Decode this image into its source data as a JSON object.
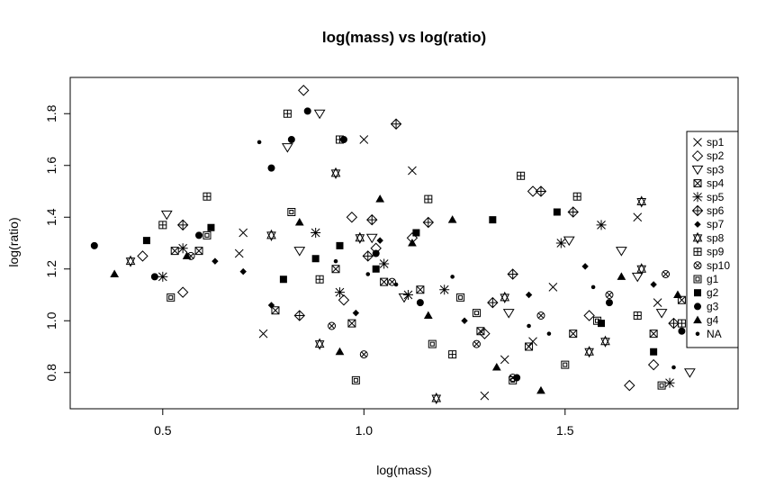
{
  "chart_data": {
    "type": "scatter",
    "title": "log(mass) vs log(ratio)",
    "xlabel": "log(mass)",
    "ylabel": "log(ratio)",
    "xlim": [
      0.27,
      1.93
    ],
    "ylim": [
      0.66,
      1.94
    ],
    "x_ticks": [
      "0.5",
      "1.0",
      "1.5"
    ],
    "y_ticks": [
      "0.8",
      "1.0",
      "1.2",
      "1.4",
      "1.6",
      "1.8"
    ],
    "grid": false,
    "legend_position": "right",
    "series": [
      {
        "name": "sp1",
        "symbol": "x",
        "points": [
          [
            0.7,
            1.34
          ],
          [
            0.69,
            1.26
          ],
          [
            0.75,
            0.95
          ],
          [
            1.0,
            1.7
          ],
          [
            1.12,
            1.58
          ],
          [
            1.3,
            0.71
          ],
          [
            1.47,
            1.13
          ],
          [
            1.68,
            1.4
          ],
          [
            1.73,
            1.07
          ],
          [
            1.83,
            1.02
          ],
          [
            1.35,
            0.85
          ],
          [
            1.42,
            0.92
          ]
        ]
      },
      {
        "name": "sp2",
        "symbol": "diamond",
        "points": [
          [
            0.45,
            1.25
          ],
          [
            0.55,
            1.11
          ],
          [
            0.85,
            1.89
          ],
          [
            0.97,
            1.4
          ],
          [
            1.03,
            1.28
          ],
          [
            1.12,
            1.32
          ],
          [
            1.42,
            1.5
          ],
          [
            1.66,
            0.75
          ],
          [
            1.3,
            0.95
          ],
          [
            1.56,
            1.02
          ],
          [
            1.72,
            0.83
          ],
          [
            0.95,
            1.08
          ]
        ]
      },
      {
        "name": "sp3",
        "symbol": "triangle-down",
        "points": [
          [
            0.51,
            1.41
          ],
          [
            0.81,
            1.67
          ],
          [
            0.89,
            1.8
          ],
          [
            0.84,
            1.27
          ],
          [
            1.02,
            1.32
          ],
          [
            1.1,
            1.09
          ],
          [
            1.36,
            1.03
          ],
          [
            1.51,
            1.31
          ],
          [
            1.64,
            1.27
          ],
          [
            1.68,
            1.17
          ],
          [
            1.74,
            1.03
          ],
          [
            1.81,
            0.8
          ]
        ]
      },
      {
        "name": "sp4",
        "symbol": "box-x",
        "points": [
          [
            0.53,
            1.27
          ],
          [
            0.59,
            1.27
          ],
          [
            0.78,
            1.04
          ],
          [
            0.93,
            1.2
          ],
          [
            1.05,
            1.15
          ],
          [
            1.29,
            0.96
          ],
          [
            1.41,
            0.9
          ],
          [
            1.52,
            0.95
          ],
          [
            1.72,
            0.95
          ],
          [
            1.79,
            1.08
          ],
          [
            1.14,
            1.12
          ],
          [
            0.97,
            0.99
          ]
        ]
      },
      {
        "name": "sp5",
        "symbol": "asterisk",
        "points": [
          [
            0.5,
            1.17
          ],
          [
            0.55,
            1.28
          ],
          [
            0.94,
            1.11
          ],
          [
            1.11,
            1.1
          ],
          [
            1.2,
            1.12
          ],
          [
            1.49,
            1.3
          ],
          [
            1.59,
            1.37
          ],
          [
            1.76,
            0.76
          ],
          [
            1.84,
            0.93
          ],
          [
            1.05,
            1.22
          ],
          [
            0.88,
            1.34
          ]
        ]
      },
      {
        "name": "sp6",
        "symbol": "circle-plus",
        "points": [
          [
            0.55,
            1.37
          ],
          [
            0.84,
            1.02
          ],
          [
            1.02,
            1.39
          ],
          [
            1.08,
            1.76
          ],
          [
            1.16,
            1.38
          ],
          [
            1.37,
            1.18
          ],
          [
            1.44,
            1.5
          ],
          [
            1.52,
            1.42
          ],
          [
            1.77,
            0.99
          ],
          [
            1.83,
            1.17
          ],
          [
            1.01,
            1.25
          ],
          [
            1.32,
            1.07
          ]
        ]
      },
      {
        "name": "sp7",
        "symbol": "small-diamond",
        "points": [
          [
            0.63,
            1.23
          ],
          [
            0.7,
            1.19
          ],
          [
            0.77,
            1.06
          ],
          [
            0.98,
            1.03
          ],
          [
            1.25,
            1.0
          ],
          [
            1.41,
            1.1
          ],
          [
            1.55,
            1.21
          ],
          [
            1.72,
            1.14
          ],
          [
            1.87,
            0.99
          ],
          [
            1.04,
            1.31
          ]
        ]
      },
      {
        "name": "sp8",
        "symbol": "star-of-david",
        "points": [
          [
            0.42,
            1.23
          ],
          [
            0.77,
            1.33
          ],
          [
            0.89,
            0.91
          ],
          [
            0.93,
            1.57
          ],
          [
            1.18,
            0.7
          ],
          [
            1.35,
            1.09
          ],
          [
            1.56,
            0.88
          ],
          [
            1.69,
            1.46
          ],
          [
            1.69,
            1.2
          ],
          [
            0.99,
            1.32
          ],
          [
            1.6,
            0.92
          ]
        ]
      },
      {
        "name": "sp9",
        "symbol": "box-plus",
        "points": [
          [
            0.5,
            1.37
          ],
          [
            0.61,
            1.48
          ],
          [
            0.81,
            1.8
          ],
          [
            0.94,
            1.7
          ],
          [
            1.16,
            1.47
          ],
          [
            1.39,
            1.56
          ],
          [
            1.53,
            1.48
          ],
          [
            1.68,
            1.02
          ],
          [
            1.79,
            0.99
          ],
          [
            1.22,
            0.87
          ],
          [
            0.89,
            1.16
          ]
        ]
      },
      {
        "name": "sp10",
        "symbol": "circle-x",
        "points": [
          [
            0.57,
            1.25
          ],
          [
            0.92,
            0.98
          ],
          [
            1.07,
            1.15
          ],
          [
            1.28,
            0.91
          ],
          [
            1.44,
            1.02
          ],
          [
            1.61,
            1.1
          ],
          [
            1.75,
            1.18
          ],
          [
            1.86,
            1.21
          ],
          [
            1.0,
            0.87
          ],
          [
            1.37,
            0.78
          ]
        ]
      },
      {
        "name": "g1",
        "symbol": "box",
        "points": [
          [
            0.52,
            1.09
          ],
          [
            0.61,
            1.33
          ],
          [
            0.82,
            1.42
          ],
          [
            0.98,
            0.77
          ],
          [
            1.17,
            0.91
          ],
          [
            1.28,
            1.03
          ],
          [
            1.37,
            0.77
          ],
          [
            1.5,
            0.83
          ],
          [
            1.58,
            1.0
          ],
          [
            1.74,
            0.75
          ],
          [
            1.88,
            1.01
          ],
          [
            1.24,
            1.09
          ]
        ]
      },
      {
        "name": "g2",
        "symbol": "filled-box",
        "points": [
          [
            0.46,
            1.31
          ],
          [
            0.62,
            1.36
          ],
          [
            0.8,
            1.16
          ],
          [
            0.94,
            1.29
          ],
          [
            1.13,
            1.34
          ],
          [
            1.32,
            1.39
          ],
          [
            1.48,
            1.42
          ],
          [
            1.59,
            0.99
          ],
          [
            1.72,
            0.88
          ],
          [
            1.84,
            1.25
          ],
          [
            1.03,
            1.2
          ],
          [
            0.88,
            1.24
          ]
        ]
      },
      {
        "name": "g3",
        "symbol": "filled-circle",
        "points": [
          [
            0.33,
            1.29
          ],
          [
            0.48,
            1.17
          ],
          [
            0.59,
            1.33
          ],
          [
            0.77,
            1.59
          ],
          [
            0.82,
            1.7
          ],
          [
            0.86,
            1.81
          ],
          [
            0.95,
            1.7
          ],
          [
            1.14,
            1.07
          ],
          [
            1.38,
            0.78
          ],
          [
            1.61,
            1.07
          ],
          [
            1.79,
            0.96
          ],
          [
            1.03,
            1.26
          ]
        ]
      },
      {
        "name": "g4",
        "symbol": "filled-triangle",
        "points": [
          [
            0.38,
            1.18
          ],
          [
            0.56,
            1.25
          ],
          [
            0.84,
            1.38
          ],
          [
            0.94,
            0.88
          ],
          [
            1.04,
            1.47
          ],
          [
            1.12,
            1.3
          ],
          [
            1.22,
            1.39
          ],
          [
            1.33,
            0.82
          ],
          [
            1.44,
            0.73
          ],
          [
            1.64,
            1.17
          ],
          [
            1.78,
            1.1
          ],
          [
            1.16,
            1.02
          ]
        ]
      },
      {
        "name": "NA",
        "symbol": "dot",
        "points": [
          [
            0.63,
            1.23
          ],
          [
            0.74,
            1.69
          ],
          [
            0.93,
            1.23
          ],
          [
            1.08,
            1.14
          ],
          [
            1.41,
            0.98
          ],
          [
            1.57,
            1.13
          ],
          [
            1.77,
            0.82
          ],
          [
            1.85,
            1.05
          ],
          [
            1.01,
            1.18
          ],
          [
            1.22,
            1.17
          ],
          [
            1.46,
            0.95
          ]
        ]
      }
    ]
  }
}
